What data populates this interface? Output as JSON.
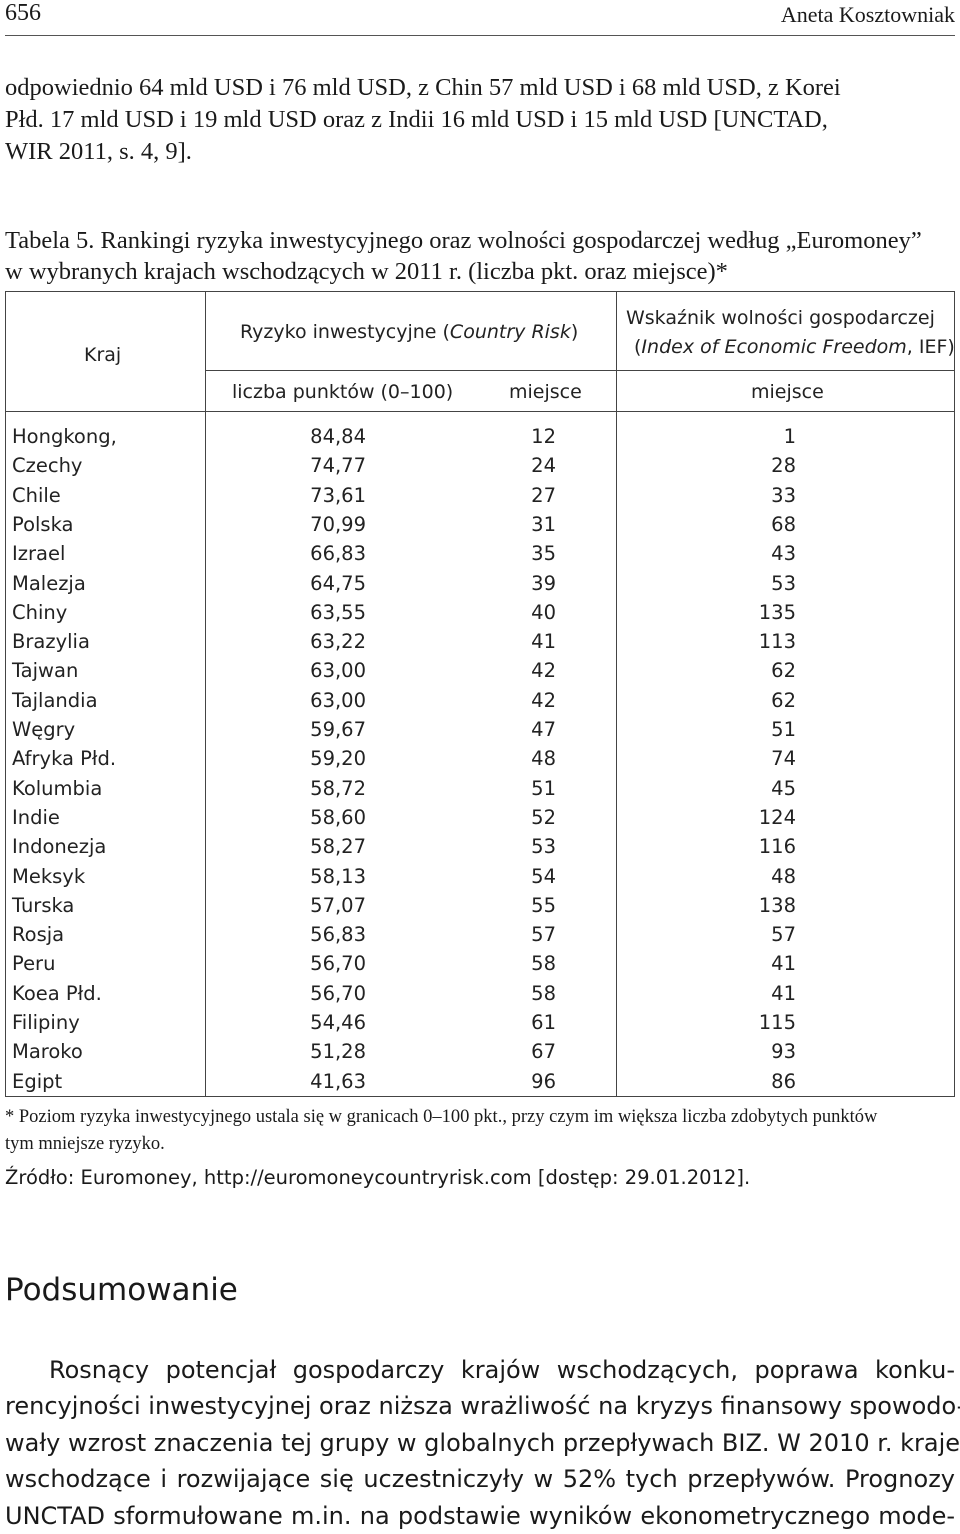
{
  "header": {
    "page_number": "656",
    "author": "Aneta Kosztowniak"
  },
  "intro_paragraph": {
    "lines": [
      "odpowiednio 64 mld USD i 76 mld USD, z Chin 57 mld USD i 68 mld USD, z Korei",
      "Płd. 17 mld USD i 19 mld USD oraz z Indii 16 mld USD i 15 mld USD [UNCTAD,",
      "WIR 2011, s. 4, 9]."
    ]
  },
  "table_caption": {
    "lines": [
      "Tabela 5. Rankingi ryzyka inwestycyjnego oraz wolności gospodarczej według „Euromoney”",
      "w wybranych krajach wschodzących w 2011 r. (liczba pkt. oraz miejsce)*"
    ]
  },
  "table": {
    "headers": {
      "country": "Kraj",
      "risk_group_prefix": "Ryzyko inwestycyjne (",
      "risk_group_italic": "Country Risk",
      "risk_group_suffix": ")",
      "ief_group_line1": "Wskaźnik wolności gospodarczej",
      "ief_group_prefix": "(",
      "ief_group_italic": "Index of Economic Freedom",
      "ief_group_suffix": ", IEF)",
      "points": "liczba punktów (0–100)",
      "risk_rank": "miejsce",
      "ief_rank": "miejsce"
    },
    "rows": [
      {
        "country": "Hongkong,",
        "points": "84,84",
        "risk_rank": "12",
        "ief_rank": "1"
      },
      {
        "country": "Czechy",
        "points": "74,77",
        "risk_rank": "24",
        "ief_rank": "28"
      },
      {
        "country": "Chile",
        "points": "73,61",
        "risk_rank": "27",
        "ief_rank": "33"
      },
      {
        "country": "Polska",
        "points": "70,99",
        "risk_rank": "31",
        "ief_rank": "68"
      },
      {
        "country": "Izrael",
        "points": "66,83",
        "risk_rank": "35",
        "ief_rank": "43"
      },
      {
        "country": "Malezja",
        "points": "64,75",
        "risk_rank": "39",
        "ief_rank": "53"
      },
      {
        "country": "Chiny",
        "points": "63,55",
        "risk_rank": "40",
        "ief_rank": "135"
      },
      {
        "country": "Brazylia",
        "points": "63,22",
        "risk_rank": "41",
        "ief_rank": "113"
      },
      {
        "country": "Tajwan",
        "points": "63,00",
        "risk_rank": "42",
        "ief_rank": "62"
      },
      {
        "country": "Tajlandia",
        "points": "63,00",
        "risk_rank": "42",
        "ief_rank": "62"
      },
      {
        "country": "Węgry",
        "points": "59,67",
        "risk_rank": "47",
        "ief_rank": "51"
      },
      {
        "country": "Afryka Płd.",
        "points": "59,20",
        "risk_rank": "48",
        "ief_rank": "74"
      },
      {
        "country": "Kolumbia",
        "points": "58,72",
        "risk_rank": "51",
        "ief_rank": "45"
      },
      {
        "country": "Indie",
        "points": "58,60",
        "risk_rank": "52",
        "ief_rank": "124"
      },
      {
        "country": "Indonezja",
        "points": "58,27",
        "risk_rank": "53",
        "ief_rank": "116"
      },
      {
        "country": "Meksyk",
        "points": "58,13",
        "risk_rank": "54",
        "ief_rank": "48"
      },
      {
        "country": "Turska",
        "points": "57,07",
        "risk_rank": "55",
        "ief_rank": "138"
      },
      {
        "country": "Rosja",
        "points": "56,83",
        "risk_rank": "57",
        "ief_rank": "57"
      },
      {
        "country": "Peru",
        "points": "56,70",
        "risk_rank": "58",
        "ief_rank": "41"
      },
      {
        "country": "Koea Płd.",
        "points": "56,70",
        "risk_rank": "58",
        "ief_rank": "41"
      },
      {
        "country": "Filipiny",
        "points": "54,46",
        "risk_rank": "61",
        "ief_rank": "115"
      },
      {
        "country": "Maroko",
        "points": "51,28",
        "risk_rank": "67",
        "ief_rank": "93"
      },
      {
        "country": "Egipt",
        "points": "41,63",
        "risk_rank": "96",
        "ief_rank": "86"
      }
    ]
  },
  "footnote": {
    "lines": [
      "* Poziom ryzyka inwestycyjnego ustala się w granicach 0–100 pkt., przy czym im większa liczba zdobytych punktów",
      "tym mniejsze ryzyko."
    ]
  },
  "source": "Źródło: Euromoney, http://euromoneycountryrisk.com [dostęp: 29.01.2012].",
  "section": {
    "title": "Podsumowanie",
    "lines": [
      "Rosnący potencjał gospodarczy krajów wschodzących, poprawa konku-",
      "rencyjności inwestycyjnej oraz niższa wrażliwość na kryzys finansowy spowodo-",
      "wały wzrost znaczenia tej grupy w globalnych przepływach BIZ. W 2010 r. kraje",
      "wschodzące i rozwijające się uczestniczyły w 52% tych przepływów. Prognozy",
      "UNCTAD sformułowane m.in. na podstawie wyników ekonometrycznego mode-"
    ]
  }
}
